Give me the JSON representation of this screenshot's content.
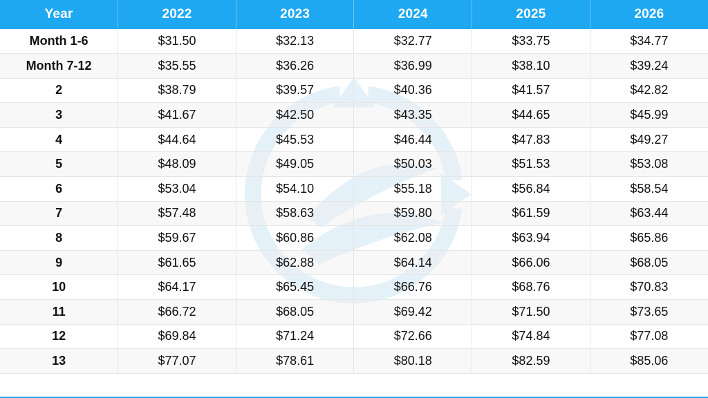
{
  "table": {
    "type": "table",
    "header_bg": "#1ea8f2",
    "header_text_color": "#ffffff",
    "row_alt_bg": "#f0f0f0",
    "border_color": "#e6e6e6",
    "text_color": "#111111",
    "header_fontsize": 19,
    "cell_fontsize": 18,
    "first_col_bold": true,
    "columns": [
      "Year",
      "2022",
      "2023",
      "2024",
      "2025",
      "2026"
    ],
    "rows": [
      [
        "Month 1-6",
        "$31.50",
        "$32.13",
        "$32.77",
        "$33.75",
        "$34.77"
      ],
      [
        "Month 7-12",
        "$35.55",
        "$36.26",
        "$36.99",
        "$38.10",
        "$39.24"
      ],
      [
        "2",
        "$38.79",
        "$39.57",
        "$40.36",
        "$41.57",
        "$42.82"
      ],
      [
        "3",
        "$41.67",
        "$42.50",
        "$43.35",
        "$44.65",
        "$45.99"
      ],
      [
        "4",
        "$44.64",
        "$45.53",
        "$46.44",
        "$47.83",
        "$49.27"
      ],
      [
        "5",
        "$48.09",
        "$49.05",
        "$50.03",
        "$51.53",
        "$53.08"
      ],
      [
        "6",
        "$53.04",
        "$54.10",
        "$55.18",
        "$56.84",
        "$58.54"
      ],
      [
        "7",
        "$57.48",
        "$58.63",
        "$59.80",
        "$61.59",
        "$63.44"
      ],
      [
        "8",
        "$59.67",
        "$60.86",
        "$62.08",
        "$63.94",
        "$65.86"
      ],
      [
        "9",
        "$61.65",
        "$62.88",
        "$64.14",
        "$66.06",
        "$68.05"
      ],
      [
        "10",
        "$64.17",
        "$65.45",
        "$66.76",
        "$68.76",
        "$70.83"
      ],
      [
        "11",
        "$66.72",
        "$68.05",
        "$69.42",
        "$71.50",
        "$73.65"
      ],
      [
        "12",
        "$69.84",
        "$71.24",
        "$72.66",
        "$74.84",
        "$77.08"
      ],
      [
        "13",
        "$77.07",
        "$78.61",
        "$80.18",
        "$82.59",
        "$85.06"
      ]
    ]
  },
  "watermark": {
    "ring_color": "#6fb8e0",
    "leaf_color": "#6fb8e0",
    "arrow_color": "#6fb8e0",
    "opacity": 0.18
  }
}
